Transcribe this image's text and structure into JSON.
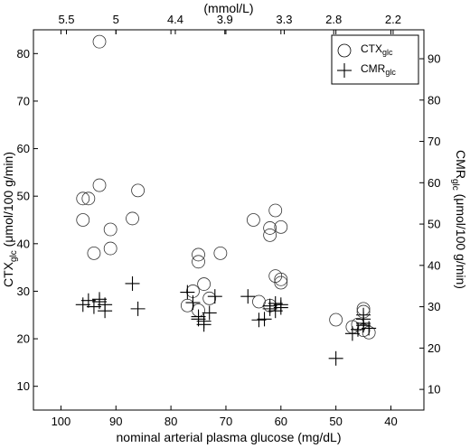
{
  "chart_data": {
    "type": "scatter",
    "xlabel": "nominal arterial plasma glucose (mg/dL)",
    "xlim": [
      105,
      34
    ],
    "x_ticks": [
      "100",
      "90",
      "80",
      "70",
      "60",
      "50",
      "40"
    ],
    "top_axis": {
      "label": "(mmol/L)",
      "ticks": [
        "5.5",
        "5",
        "4.4",
        "3.9",
        "3.3",
        "2.8",
        "2.2"
      ]
    },
    "ylabel_left": {
      "main": "CTX",
      "sub": "glc",
      "rest": " (μmol/100 g/min)"
    },
    "ylim_left": [
      5,
      85
    ],
    "left_ticks": [
      "10",
      "20",
      "30",
      "40",
      "50",
      "60",
      "70",
      "80"
    ],
    "ylabel_right": {
      "main": "CMR",
      "sub": "glc",
      "rest": " (μmol/100 g/min)"
    },
    "ylim_right": [
      5,
      97
    ],
    "right_ticks": [
      "10",
      "20",
      "30",
      "40",
      "50",
      "60",
      "70",
      "80",
      "90"
    ],
    "legend": {
      "position": "top-right",
      "entries": [
        {
          "name": "CTX",
          "sub": "glc",
          "marker": "circle"
        },
        {
          "name": "CMR",
          "sub": "glc",
          "marker": "plus"
        }
      ]
    },
    "series": [
      {
        "name": "CTXglc",
        "marker": "circle",
        "axis": "left",
        "points": [
          [
            93,
            82.5
          ],
          [
            93,
            52.3
          ],
          [
            96,
            49.5
          ],
          [
            95,
            49.5
          ],
          [
            86,
            51.2
          ],
          [
            87,
            45.3
          ],
          [
            96,
            45
          ],
          [
            91,
            43
          ],
          [
            94,
            38
          ],
          [
            91,
            39
          ],
          [
            75,
            37.7
          ],
          [
            71,
            38
          ],
          [
            75,
            36.2
          ],
          [
            74,
            31.5
          ],
          [
            76,
            30
          ],
          [
            77,
            27
          ],
          [
            75,
            26
          ],
          [
            73,
            28.5
          ],
          [
            65,
            45
          ],
          [
            61,
            47
          ],
          [
            62,
            43.3
          ],
          [
            60,
            43.5
          ],
          [
            62,
            41.8
          ],
          [
            61,
            33.2
          ],
          [
            60,
            32.5
          ],
          [
            60,
            31.8
          ],
          [
            64,
            27.8
          ],
          [
            62,
            27
          ],
          [
            50,
            24
          ],
          [
            45,
            26.3
          ],
          [
            45,
            25.7
          ],
          [
            46,
            23
          ],
          [
            47,
            22.5
          ],
          [
            45,
            21.8
          ],
          [
            44,
            21.3
          ]
        ]
      },
      {
        "name": "CMRglc",
        "marker": "plus",
        "axis": "right",
        "points": [
          [
            96,
            30.5
          ],
          [
            95,
            31.5
          ],
          [
            94,
            30
          ],
          [
            93,
            31.8
          ],
          [
            93,
            31.2
          ],
          [
            92,
            30.5
          ],
          [
            92,
            29
          ],
          [
            87,
            35.6
          ],
          [
            86,
            29.5
          ],
          [
            77,
            33.5
          ],
          [
            76,
            31
          ],
          [
            75,
            27.6
          ],
          [
            75,
            27
          ],
          [
            74,
            25.7
          ],
          [
            74,
            26.5
          ],
          [
            73,
            28.5
          ],
          [
            72,
            32.5
          ],
          [
            66,
            32.5
          ],
          [
            64,
            26.8
          ],
          [
            63,
            27
          ],
          [
            62,
            29.5
          ],
          [
            62,
            30.2
          ],
          [
            61,
            30.8
          ],
          [
            61,
            29
          ],
          [
            60,
            30.5
          ],
          [
            60,
            29.8
          ],
          [
            50,
            17.5
          ],
          [
            47,
            23.5
          ],
          [
            46,
            24.5
          ],
          [
            45,
            28
          ],
          [
            45,
            27
          ],
          [
            45,
            26
          ],
          [
            45,
            25.5
          ],
          [
            44,
            24.8
          ]
        ]
      }
    ]
  }
}
